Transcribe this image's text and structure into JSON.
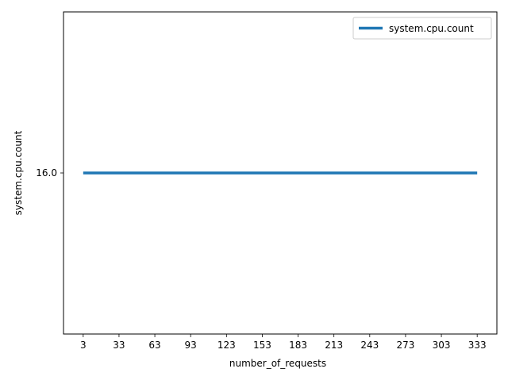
{
  "chart_data": {
    "type": "line",
    "title": "",
    "xlabel": "number_of_requests",
    "ylabel": "system.cpu.count",
    "x": [
      3,
      33,
      63,
      93,
      123,
      153,
      183,
      213,
      243,
      273,
      303,
      333
    ],
    "x_tick_labels": [
      "3",
      "33",
      "63",
      "93",
      "123",
      "153",
      "183",
      "213",
      "243",
      "273",
      "303",
      "333"
    ],
    "y_tick_values": [
      16.0
    ],
    "y_tick_labels": [
      "16.0"
    ],
    "ylim": [
      15.2,
      16.8
    ],
    "grid": false,
    "legend_position": "top-right",
    "series": [
      {
        "name": "system.cpu.count",
        "color": "#1f77b4",
        "values": [
          16.0,
          16.0,
          16.0,
          16.0,
          16.0,
          16.0,
          16.0,
          16.0,
          16.0,
          16.0,
          16.0,
          16.0
        ]
      }
    ]
  }
}
